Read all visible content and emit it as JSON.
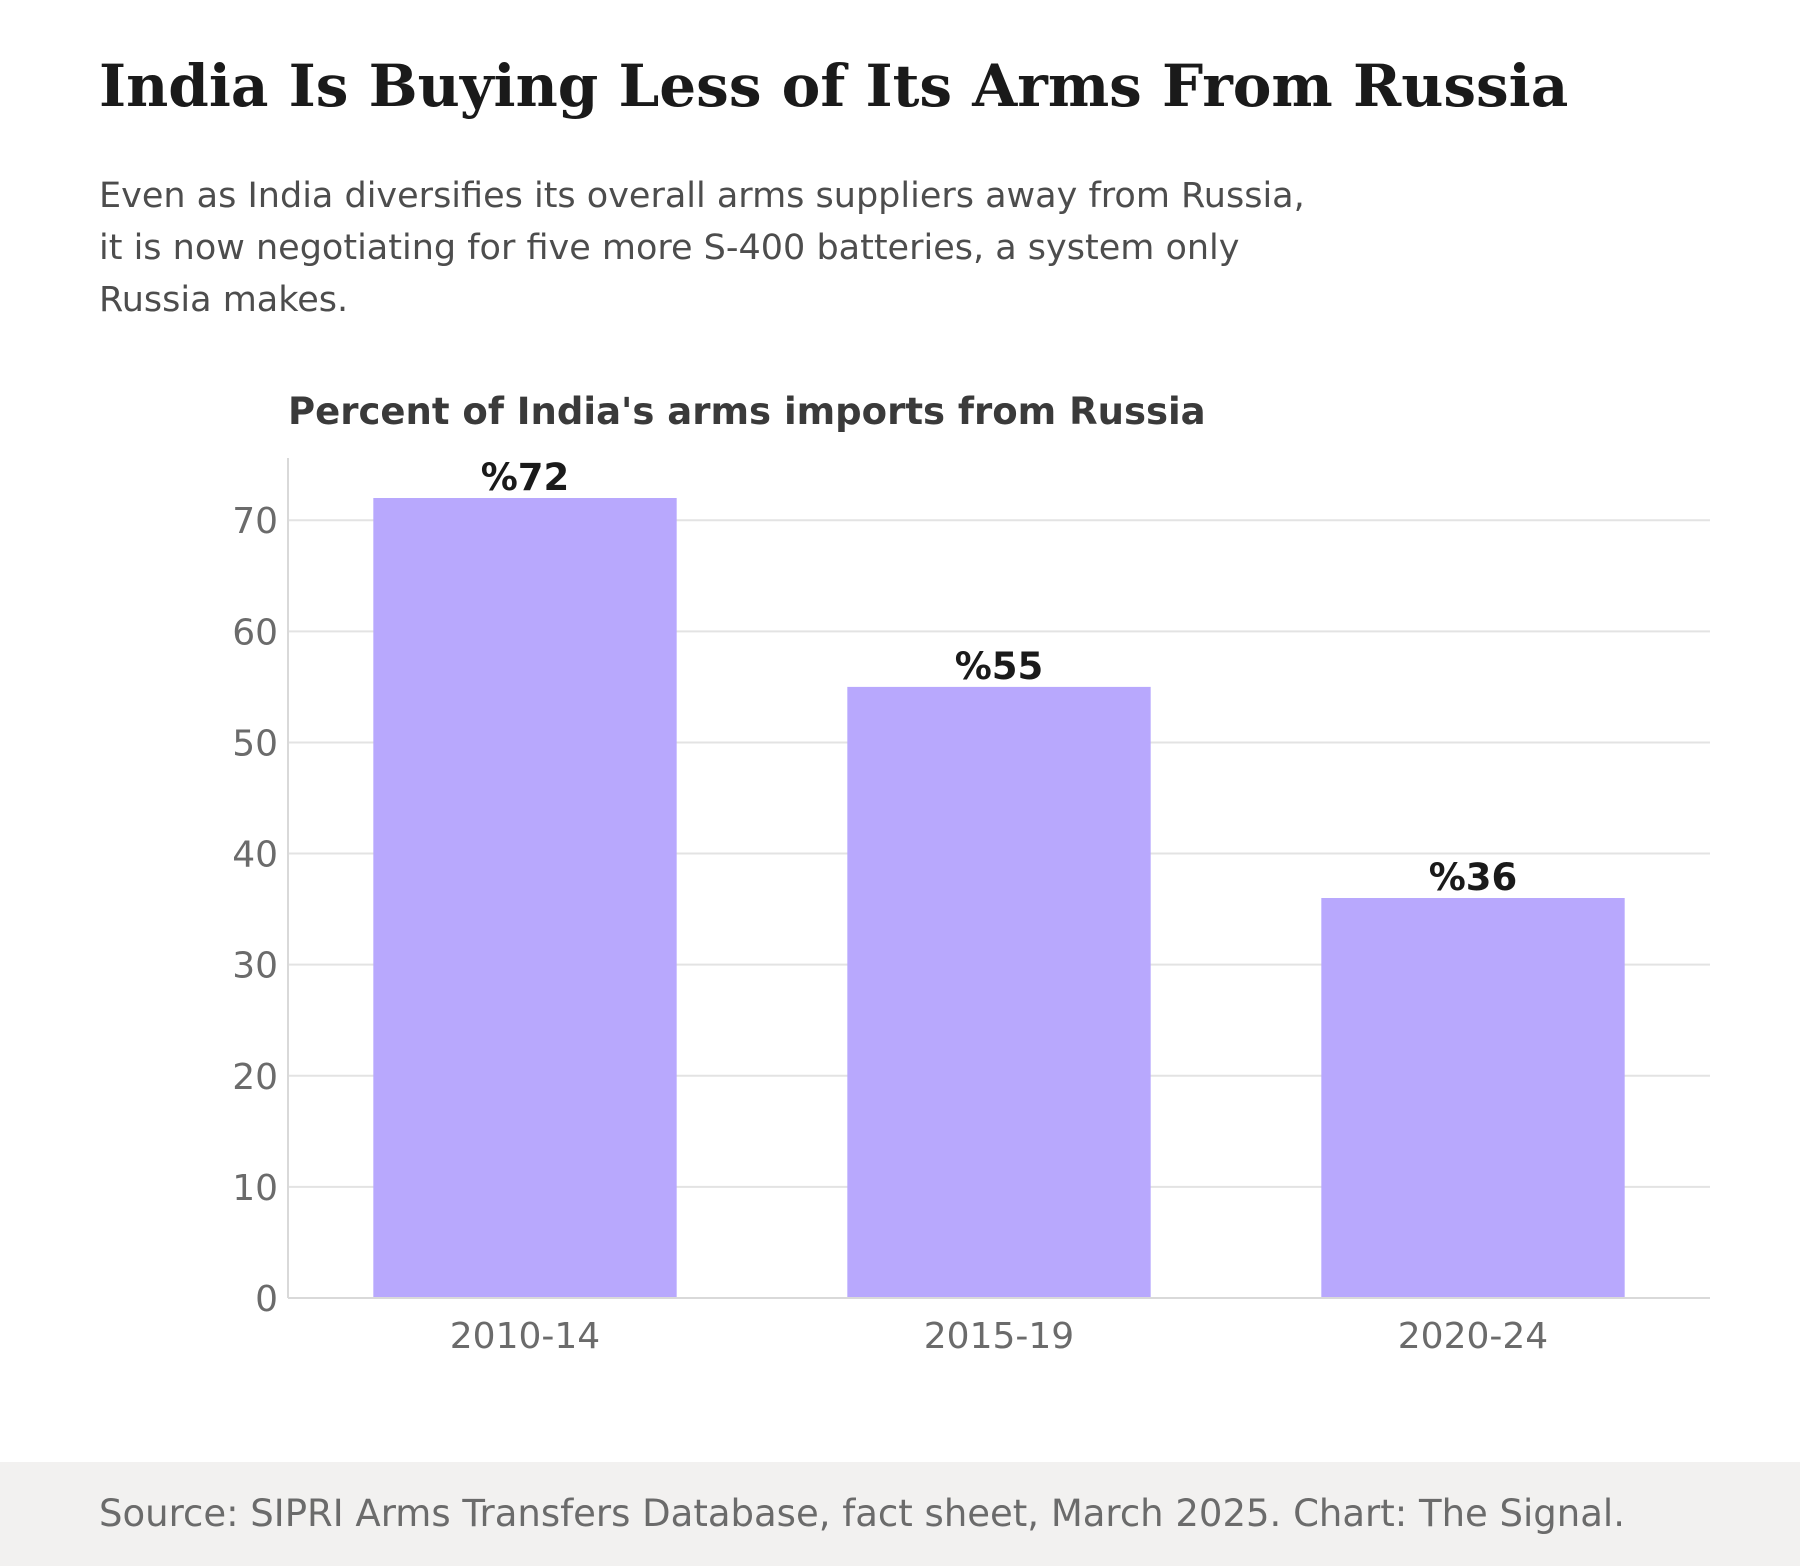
{
  "header": {
    "title": "India Is Buying Less of Its Arms From Russia",
    "subtitle_lines": [
      "Even as India diversifies its overall arms suppliers away from Russia,",
      "it is now negotiating for five more S-400 batteries, a system only",
      "Russia makes."
    ]
  },
  "chart_data": {
    "type": "bar",
    "title": "Percent of India's arms imports from Russia",
    "categories": [
      "2010-14",
      "2015-19",
      "2020-24"
    ],
    "values": [
      72,
      55,
      36
    ],
    "data_labels": [
      "%72",
      "%55",
      "%36"
    ],
    "xlabel": "",
    "ylabel": "",
    "ylim": [
      0,
      75.6
    ],
    "yticks": [
      0,
      10,
      20,
      30,
      40,
      50,
      60,
      70
    ],
    "grid": true,
    "bar_color": "#b8a8fd",
    "legend": "none"
  },
  "footer": {
    "source": "Source: SIPRI Arms Transfers Database, fact sheet, March 2025. Chart: The Signal."
  }
}
